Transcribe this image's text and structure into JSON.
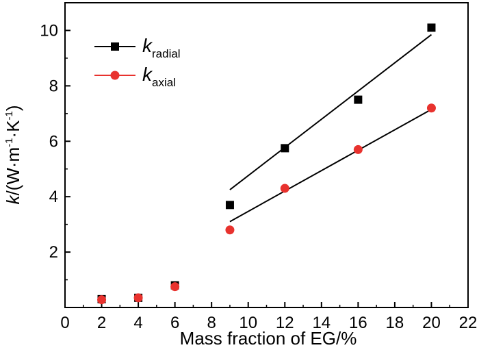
{
  "chart_data": {
    "type": "scatter",
    "xlabel": "Mass fraction of EG/%",
    "ylabel": {
      "k": "k",
      "rest": "/(W·m",
      "exp1": "-1",
      "mid": "·K",
      "exp2": "-1",
      "close": ")"
    },
    "xlim": [
      0,
      22
    ],
    "ylim": [
      0,
      11
    ],
    "xticks": [
      0,
      2,
      4,
      6,
      8,
      10,
      12,
      14,
      16,
      18,
      20,
      22
    ],
    "yticks": [
      2,
      4,
      6,
      8,
      10
    ],
    "grid": false,
    "legend_position": "top-left",
    "series": [
      {
        "name": "k_radial",
        "legend_main": "k",
        "legend_sub": "radial",
        "marker": "square",
        "color": "#000000",
        "x": [
          2,
          4,
          6,
          9,
          12,
          16,
          20
        ],
        "y": [
          0.3,
          0.35,
          0.8,
          3.7,
          5.75,
          7.5,
          10.1
        ],
        "fit": {
          "x": [
            9,
            20
          ],
          "y": [
            4.25,
            9.85
          ]
        }
      },
      {
        "name": "k_axial",
        "legend_main": "k",
        "legend_sub": "axial",
        "marker": "circle",
        "color": "#e8322e",
        "x": [
          2,
          4,
          6,
          9,
          12,
          16,
          20
        ],
        "y": [
          0.28,
          0.35,
          0.75,
          2.8,
          4.3,
          5.7,
          7.2
        ],
        "fit": {
          "x": [
            9,
            20
          ],
          "y": [
            3.1,
            7.15
          ]
        }
      }
    ]
  }
}
